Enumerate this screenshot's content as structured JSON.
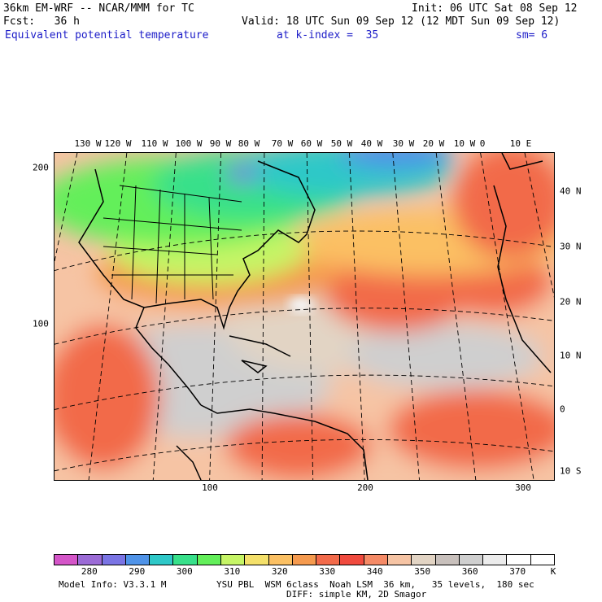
{
  "header": {
    "line1_left": "36km EM-WRF -- NCAR/MMM for TC",
    "line1_right": "Init: 06 UTC Sat 08 Sep 12",
    "line2_left": "Fcst:   36 h",
    "line2_right": "Valid: 18 UTC Sun 09 Sep 12 (12 MDT Sun 09 Sep 12)",
    "field_name": "Equivalent potential temperature",
    "level": "at k-index =  35",
    "smoothing": "sm= 6"
  },
  "axes": {
    "top_longitudes": [
      "130 W",
      "120 W",
      "110 W",
      "100 W",
      "90 W",
      "80 W",
      "70 W",
      "60 W",
      "50 W",
      "40 W",
      "30 W",
      "20 W",
      "10 W",
      "0",
      "10 E"
    ],
    "right_latitudes": [
      "40 N",
      "30 N",
      "20 N",
      "10 N",
      "0",
      "10 S"
    ],
    "left_grid": [
      "200",
      "100"
    ],
    "bottom_grid": [
      "100",
      "200",
      "300"
    ]
  },
  "colorbar": {
    "colors": [
      "#d455c8",
      "#9b6bd6",
      "#7a74e4",
      "#4f93e8",
      "#2ec8c8",
      "#37e08a",
      "#63ef5a",
      "#c6f566",
      "#f4e06a",
      "#fbc063",
      "#f59a4e",
      "#f26a4a",
      "#f04a3e",
      "#f58a66",
      "#f6c4a4",
      "#e2d4c4",
      "#c8c0bc",
      "#cfcfcf",
      "#ececec",
      "#ffffff",
      "#ffffff"
    ],
    "labels": [
      "280",
      "290",
      "300",
      "310",
      "320",
      "330",
      "340",
      "350",
      "360",
      "370"
    ],
    "unit": "K"
  },
  "footer": {
    "model_info": "Model Info: V3.3.1 M",
    "physics": "YSU PBL  WSM 6class  Noah LSM  36 km,   35 levels,  180 sec",
    "diffusion": "DIFF: simple KM, 2D Smagor"
  }
}
